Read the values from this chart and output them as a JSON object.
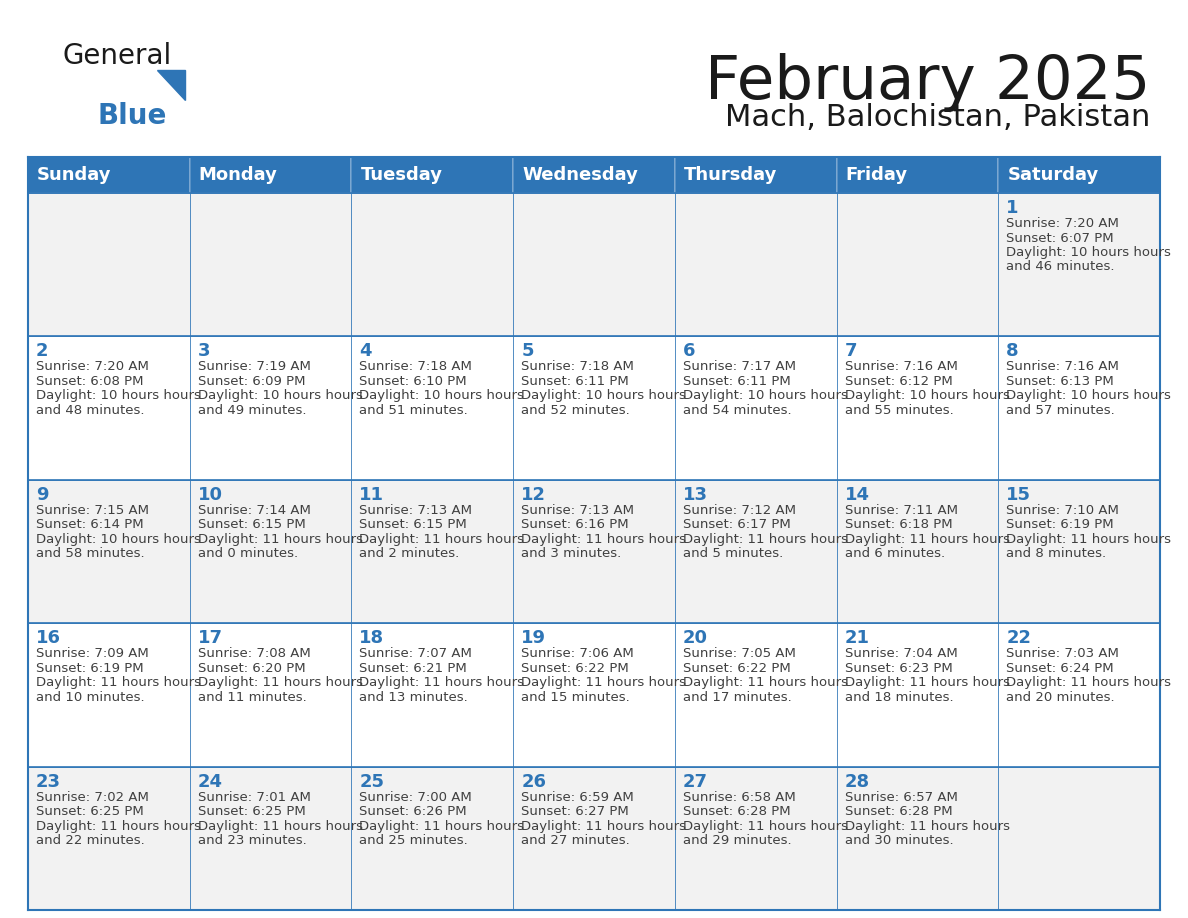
{
  "title": "February 2025",
  "subtitle": "Mach, Balochistan, Pakistan",
  "days_of_week": [
    "Sunday",
    "Monday",
    "Tuesday",
    "Wednesday",
    "Thursday",
    "Friday",
    "Saturday"
  ],
  "header_bg": "#2E75B6",
  "header_text": "#FFFFFF",
  "cell_bg_odd": "#F2F2F2",
  "cell_bg_even": "#FFFFFF",
  "border_color": "#2E75B6",
  "day_num_color": "#2E75B6",
  "text_color": "#404040",
  "title_color": "#1a1a1a",
  "logo_general_color": "#1a1a1a",
  "logo_blue_color": "#2E75B6",
  "logo_triangle_color": "#2E75B6",
  "weeks": [
    [
      {
        "day": null,
        "sunrise": null,
        "sunset": null,
        "daylight": null
      },
      {
        "day": null,
        "sunrise": null,
        "sunset": null,
        "daylight": null
      },
      {
        "day": null,
        "sunrise": null,
        "sunset": null,
        "daylight": null
      },
      {
        "day": null,
        "sunrise": null,
        "sunset": null,
        "daylight": null
      },
      {
        "day": null,
        "sunrise": null,
        "sunset": null,
        "daylight": null
      },
      {
        "day": null,
        "sunrise": null,
        "sunset": null,
        "daylight": null
      },
      {
        "day": 1,
        "sunrise": "7:20 AM",
        "sunset": "6:07 PM",
        "daylight": "10 hours and 46 minutes."
      }
    ],
    [
      {
        "day": 2,
        "sunrise": "7:20 AM",
        "sunset": "6:08 PM",
        "daylight": "10 hours and 48 minutes."
      },
      {
        "day": 3,
        "sunrise": "7:19 AM",
        "sunset": "6:09 PM",
        "daylight": "10 hours and 49 minutes."
      },
      {
        "day": 4,
        "sunrise": "7:18 AM",
        "sunset": "6:10 PM",
        "daylight": "10 hours and 51 minutes."
      },
      {
        "day": 5,
        "sunrise": "7:18 AM",
        "sunset": "6:11 PM",
        "daylight": "10 hours and 52 minutes."
      },
      {
        "day": 6,
        "sunrise": "7:17 AM",
        "sunset": "6:11 PM",
        "daylight": "10 hours and 54 minutes."
      },
      {
        "day": 7,
        "sunrise": "7:16 AM",
        "sunset": "6:12 PM",
        "daylight": "10 hours and 55 minutes."
      },
      {
        "day": 8,
        "sunrise": "7:16 AM",
        "sunset": "6:13 PM",
        "daylight": "10 hours and 57 minutes."
      }
    ],
    [
      {
        "day": 9,
        "sunrise": "7:15 AM",
        "sunset": "6:14 PM",
        "daylight": "10 hours and 58 minutes."
      },
      {
        "day": 10,
        "sunrise": "7:14 AM",
        "sunset": "6:15 PM",
        "daylight": "11 hours and 0 minutes."
      },
      {
        "day": 11,
        "sunrise": "7:13 AM",
        "sunset": "6:15 PM",
        "daylight": "11 hours and 2 minutes."
      },
      {
        "day": 12,
        "sunrise": "7:13 AM",
        "sunset": "6:16 PM",
        "daylight": "11 hours and 3 minutes."
      },
      {
        "day": 13,
        "sunrise": "7:12 AM",
        "sunset": "6:17 PM",
        "daylight": "11 hours and 5 minutes."
      },
      {
        "day": 14,
        "sunrise": "7:11 AM",
        "sunset": "6:18 PM",
        "daylight": "11 hours and 6 minutes."
      },
      {
        "day": 15,
        "sunrise": "7:10 AM",
        "sunset": "6:19 PM",
        "daylight": "11 hours and 8 minutes."
      }
    ],
    [
      {
        "day": 16,
        "sunrise": "7:09 AM",
        "sunset": "6:19 PM",
        "daylight": "11 hours and 10 minutes."
      },
      {
        "day": 17,
        "sunrise": "7:08 AM",
        "sunset": "6:20 PM",
        "daylight": "11 hours and 11 minutes."
      },
      {
        "day": 18,
        "sunrise": "7:07 AM",
        "sunset": "6:21 PM",
        "daylight": "11 hours and 13 minutes."
      },
      {
        "day": 19,
        "sunrise": "7:06 AM",
        "sunset": "6:22 PM",
        "daylight": "11 hours and 15 minutes."
      },
      {
        "day": 20,
        "sunrise": "7:05 AM",
        "sunset": "6:22 PM",
        "daylight": "11 hours and 17 minutes."
      },
      {
        "day": 21,
        "sunrise": "7:04 AM",
        "sunset": "6:23 PM",
        "daylight": "11 hours and 18 minutes."
      },
      {
        "day": 22,
        "sunrise": "7:03 AM",
        "sunset": "6:24 PM",
        "daylight": "11 hours and 20 minutes."
      }
    ],
    [
      {
        "day": 23,
        "sunrise": "7:02 AM",
        "sunset": "6:25 PM",
        "daylight": "11 hours and 22 minutes."
      },
      {
        "day": 24,
        "sunrise": "7:01 AM",
        "sunset": "6:25 PM",
        "daylight": "11 hours and 23 minutes."
      },
      {
        "day": 25,
        "sunrise": "7:00 AM",
        "sunset": "6:26 PM",
        "daylight": "11 hours and 25 minutes."
      },
      {
        "day": 26,
        "sunrise": "6:59 AM",
        "sunset": "6:27 PM",
        "daylight": "11 hours and 27 minutes."
      },
      {
        "day": 27,
        "sunrise": "6:58 AM",
        "sunset": "6:28 PM",
        "daylight": "11 hours and 29 minutes."
      },
      {
        "day": 28,
        "sunrise": "6:57 AM",
        "sunset": "6:28 PM",
        "daylight": "11 hours and 30 minutes."
      },
      {
        "day": null,
        "sunrise": null,
        "sunset": null,
        "daylight": null
      }
    ]
  ]
}
